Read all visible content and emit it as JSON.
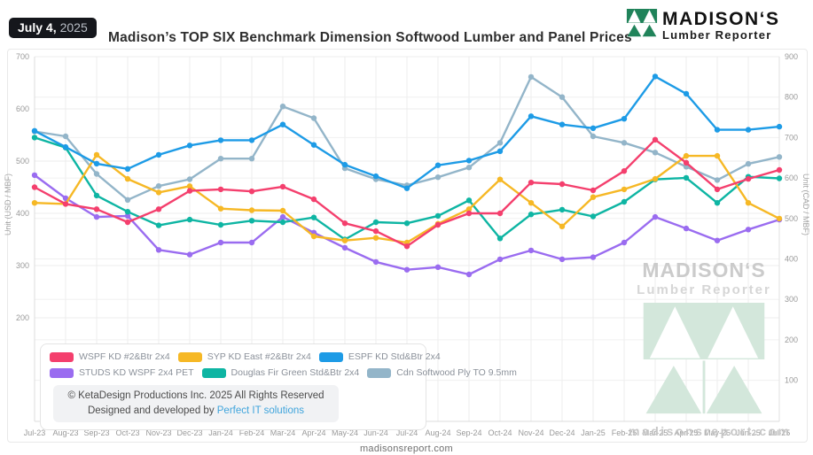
{
  "header": {
    "date_bold": "July 4,",
    "date_year": "2025",
    "title": "Madison’s TOP SIX Benchmark Dimension Softwood Lumber and Panel Prices",
    "brand_name": "MADISON‘S",
    "brand_sub": "Lumber Reporter"
  },
  "chart_data": {
    "type": "line",
    "title": "Madison’s TOP SIX Benchmark Dimension Softwood Lumber and Panel Prices",
    "categories": [
      "Jul-23",
      "Aug-23",
      "Sep-23",
      "Oct-23",
      "Nov-23",
      "Dec-23",
      "Jan-24",
      "Feb-24",
      "Mar-24",
      "Apr-24",
      "May-24",
      "Jun-24",
      "Jul-24",
      "Aug-24",
      "Sep-24",
      "Oct-24",
      "Nov-24",
      "Dec-24",
      "Jan-25",
      "Feb-25",
      "Mar-25",
      "Apr-25",
      "May-25",
      "Jun-25",
      "Jul-25"
    ],
    "left_axis": {
      "label": "Unit (USD / MBF)",
      "ticks": [
        700,
        600,
        500,
        400,
        300,
        200
      ],
      "max": 700
    },
    "right_axis": {
      "label": "Unit (CAD / MBF)",
      "ticks": [
        900,
        800,
        700,
        600,
        500,
        400,
        300,
        200,
        100
      ],
      "max": 900
    },
    "grid": true,
    "legend_position": "bottom-left box",
    "series": [
      {
        "name": "Cdn Softwood Ply TO 9.5mm",
        "color": "#93b5c9",
        "axis": "right",
        "values": [
          715,
          703,
          610,
          546,
          580,
          597,
          648,
          648,
          777,
          748,
          624,
          597,
          582,
          602,
          626,
          687,
          850,
          800,
          703,
          687,
          663,
          628,
          595,
          635,
          652
        ]
      },
      {
        "name": "STUDS KD WSPF 2x4 PET",
        "color": "#9a6cf0",
        "axis": "left",
        "values": [
          473,
          429,
          393,
          395,
          330,
          321,
          344,
          344,
          393,
          363,
          334,
          307,
          292,
          297,
          283,
          312,
          329,
          312,
          316,
          344,
          393,
          371,
          348,
          369,
          388
        ]
      },
      {
        "name": "Douglas Fir Green Std&Btr 2x4",
        "color": "#0eb5a3",
        "axis": "left",
        "values": [
          545,
          526,
          434,
          403,
          377,
          388,
          378,
          386,
          383,
          392,
          350,
          383,
          381,
          395,
          425,
          352,
          398,
          407,
          394,
          422,
          465,
          468,
          420,
          470,
          467
        ]
      },
      {
        "name": "SYP KD East #2&Btr 2x4",
        "color": "#f6b825",
        "axis": "left",
        "values": [
          420,
          418,
          512,
          466,
          440,
          452,
          409,
          406,
          405,
          356,
          348,
          353,
          344,
          380,
          408,
          465,
          420,
          375,
          431,
          446,
          466,
          510,
          510,
          420,
          390
        ]
      },
      {
        "name": "WSPF KD #2&Btr 2x4",
        "color": "#f43f6d",
        "axis": "left",
        "values": [
          450,
          418,
          408,
          383,
          408,
          443,
          446,
          442,
          451,
          427,
          381,
          366,
          337,
          378,
          400,
          400,
          459,
          456,
          444,
          481,
          541,
          497,
          446,
          466,
          483
        ]
      },
      {
        "name": "ESPF KD Std&Btr 2x4",
        "color": "#1d9be6",
        "axis": "left",
        "values": [
          558,
          527,
          495,
          485,
          512,
          530,
          540,
          540,
          570,
          531,
          493,
          471,
          448,
          492,
          501,
          519,
          586,
          570,
          563,
          581,
          662,
          629,
          560,
          560,
          566
        ]
      }
    ]
  },
  "legend": {
    "items": [
      {
        "label": "WSPF KD #2&Btr 2x4",
        "color": "#f43f6d"
      },
      {
        "label": "SYP KD East #2&Btr 2x4",
        "color": "#f6b825"
      },
      {
        "label": "ESPF KD Std&Btr 2x4",
        "color": "#1d9be6"
      },
      {
        "label": "STUDS KD WSPF 2x4 PET",
        "color": "#9a6cf0"
      },
      {
        "label": "Douglas Fir Green Std&Btr 2x4",
        "color": "#0eb5a3"
      },
      {
        "label": "Cdn Softwood Ply TO 9.5mm",
        "color": "#93b5c9"
      }
    ]
  },
  "footer_box": {
    "line1": "© KetaDesign Productions Inc. 2025 All Rights Reserved",
    "line2_prefix": "Designed and developed by ",
    "line2_link": "Perfect IT solutions"
  },
  "watermark": {
    "brand": "MADISON‘S",
    "sub": "Lumber Reporter",
    "site": "madisonsreport.com"
  },
  "page_footer": {
    "site": "madisonsreport.com"
  },
  "colors": {
    "brand_green": "#20835a",
    "watermark_green": "#d3e7db",
    "badge_bg": "#15171c",
    "link_blue": "#3ea4dc"
  }
}
